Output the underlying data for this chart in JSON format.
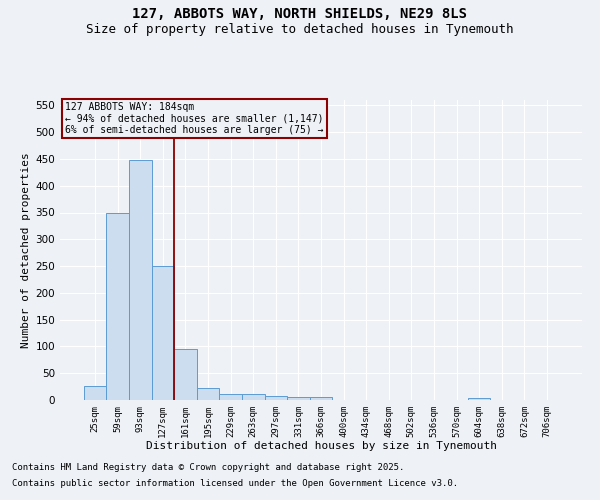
{
  "title_line1": "127, ABBOTS WAY, NORTH SHIELDS, NE29 8LS",
  "title_line2": "Size of property relative to detached houses in Tynemouth",
  "xlabel": "Distribution of detached houses by size in Tynemouth",
  "ylabel": "Number of detached properties",
  "categories": [
    "25sqm",
    "59sqm",
    "93sqm",
    "127sqm",
    "161sqm",
    "195sqm",
    "229sqm",
    "263sqm",
    "297sqm",
    "331sqm",
    "366sqm",
    "400sqm",
    "434sqm",
    "468sqm",
    "502sqm",
    "536sqm",
    "570sqm",
    "604sqm",
    "638sqm",
    "672sqm",
    "706sqm"
  ],
  "values": [
    27,
    350,
    448,
    250,
    95,
    22,
    12,
    12,
    8,
    5,
    6,
    0,
    0,
    0,
    0,
    0,
    0,
    3,
    0,
    0,
    0
  ],
  "bar_color": "#ccddf0",
  "bar_edge_color": "#5b9bd5",
  "vline_color": "#8b0000",
  "vline_index": 3.5,
  "annotation_text_line1": "127 ABBOTS WAY: 184sqm",
  "annotation_text_line2": "← 94% of detached houses are smaller (1,147)",
  "annotation_text_line3": "6% of semi-detached houses are larger (75) →",
  "annotation_box_color": "#8b0000",
  "ylim": [
    0,
    560
  ],
  "yticks": [
    0,
    50,
    100,
    150,
    200,
    250,
    300,
    350,
    400,
    450,
    500,
    550
  ],
  "bg_color": "#eef2f7",
  "grid_color": "#ffffff",
  "footer_line1": "Contains HM Land Registry data © Crown copyright and database right 2025.",
  "footer_line2": "Contains public sector information licensed under the Open Government Licence v3.0.",
  "title_fontsize": 10,
  "subtitle_fontsize": 9,
  "annotation_fontsize": 7,
  "footer_fontsize": 6.5,
  "xlabel_fontsize": 8,
  "ylabel_fontsize": 8
}
